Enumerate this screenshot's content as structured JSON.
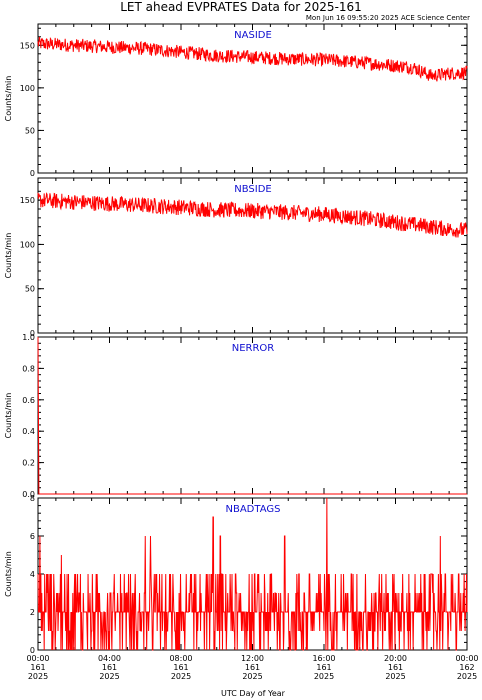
{
  "title": "LET ahead EVPRATES Data for 2025-161",
  "timestamp": "Mon Jun 16 09:55:20 2025 ACE Science Center",
  "xlabel": "UTC Day of Year",
  "colors": {
    "series": "#ff0000",
    "panel_title": "#1010d0",
    "axes": "#000000"
  },
  "chart_data": [
    {
      "type": "line",
      "title": "NASIDE",
      "ylabel": "Counts/min",
      "ylim": [
        0,
        175
      ],
      "yticks": [
        "0",
        "50",
        "100",
        "150"
      ],
      "ytick_values": [
        0,
        50,
        100,
        150
      ],
      "x_hours": [
        0,
        2,
        4,
        6,
        8,
        10,
        12,
        14,
        16,
        18,
        20,
        21,
        22,
        23,
        24
      ],
      "values": [
        152,
        150,
        148,
        146,
        142,
        138,
        136,
        134,
        133,
        130,
        126,
        124,
        114,
        117,
        118
      ],
      "noise": 8
    },
    {
      "type": "line",
      "title": "NBSIDE",
      "ylabel": "Counts/min",
      "ylim": [
        0,
        175
      ],
      "yticks": [
        "0",
        "50",
        "100",
        "150"
      ],
      "ytick_values": [
        0,
        50,
        100,
        150
      ],
      "x_hours": [
        0,
        2,
        4,
        6,
        8,
        10,
        12,
        14,
        16,
        18,
        20,
        22,
        23,
        24
      ],
      "values": [
        150,
        148,
        146,
        144,
        142,
        139,
        138,
        136,
        134,
        130,
        125,
        120,
        117,
        116
      ],
      "noise": 9
    },
    {
      "type": "line",
      "title": "NERROR",
      "ylabel": "Counts/min",
      "ylim": [
        0,
        1.0
      ],
      "yticks": [
        "0.0",
        "0.2",
        "0.4",
        "0.6",
        "0.8",
        "1.0"
      ],
      "ytick_values": [
        0,
        0.2,
        0.4,
        0.6,
        0.8,
        1.0
      ],
      "x_hours": [
        0,
        0.05,
        0.12,
        0.2,
        24
      ],
      "values": [
        1.0,
        0.0,
        0.0,
        0.0,
        0.0
      ],
      "noise": 0
    },
    {
      "type": "line",
      "title": "NBADTAGS",
      "ylabel": "Counts/min",
      "ylim": [
        0,
        8
      ],
      "yticks": [
        "0",
        "2",
        "4",
        "6",
        "8"
      ],
      "ytick_values": [
        0,
        2,
        4,
        6,
        8
      ],
      "x_hours": [
        0,
        24
      ],
      "values": [
        2,
        2
      ],
      "noise": 0,
      "discrete": [
        0,
        1,
        2,
        3,
        4
      ],
      "spikes": [
        [
          0.1,
          6
        ],
        [
          1.3,
          5
        ],
        [
          6.0,
          6
        ],
        [
          6.3,
          6
        ],
        [
          9.8,
          7
        ],
        [
          10.2,
          6
        ],
        [
          13.8,
          6
        ],
        [
          16.15,
          8
        ],
        [
          22.5,
          6
        ]
      ]
    }
  ],
  "x_ticks": [
    {
      "hour": 0,
      "lines": [
        "00:00",
        "161",
        "2025"
      ]
    },
    {
      "hour": 4,
      "lines": [
        "04:00",
        "161",
        "2025"
      ]
    },
    {
      "hour": 8,
      "lines": [
        "08:00",
        "161",
        "2025"
      ]
    },
    {
      "hour": 12,
      "lines": [
        "12:00",
        "161",
        "2025"
      ]
    },
    {
      "hour": 16,
      "lines": [
        "16:00",
        "161",
        "2025"
      ]
    },
    {
      "hour": 20,
      "lines": [
        "20:00",
        "161",
        "2025"
      ]
    },
    {
      "hour": 24,
      "lines": [
        "00:00",
        "162",
        "2025"
      ]
    }
  ]
}
